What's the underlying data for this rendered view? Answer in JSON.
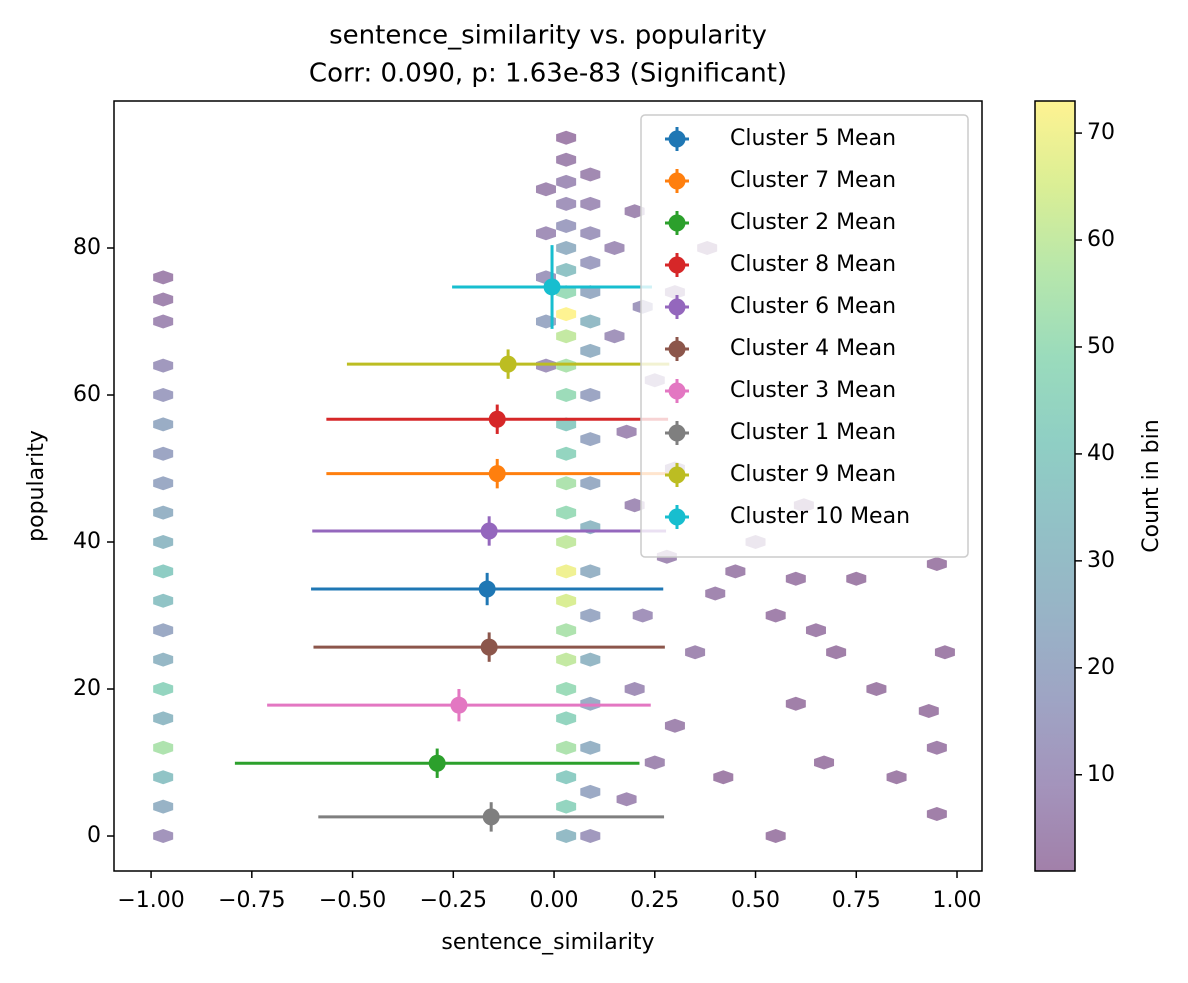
{
  "chart_data": {
    "type": "hexbin",
    "title": "sentence_similarity vs. popularity",
    "subtitle": "Corr: 0.090, p: 1.63e-83 (Significant)",
    "x_label": "sentence_similarity",
    "y_label": "popularity",
    "colorbar_label": "Count in bin",
    "xlim": [
      -1.092,
      1.062
    ],
    "ylim": [
      -4.76,
      100
    ],
    "clim": [
      1,
      73
    ],
    "xticks": [
      {
        "value": -1,
        "label": "−1.00"
      },
      {
        "value": -0.75,
        "label": "−0.75"
      },
      {
        "value": -0.5,
        "label": "−0.50"
      },
      {
        "value": -0.25,
        "label": "−0.25"
      },
      {
        "value": 0,
        "label": "0.00"
      },
      {
        "value": 0.25,
        "label": "0.25"
      },
      {
        "value": 0.5,
        "label": "0.50"
      },
      {
        "value": 0.75,
        "label": "0.75"
      },
      {
        "value": 1,
        "label": "1.00"
      }
    ],
    "yticks": [
      0,
      20,
      40,
      60,
      80
    ],
    "cticks": [
      10,
      20,
      30,
      40,
      50,
      60,
      70
    ],
    "colormap": [
      "#440154",
      "#482878",
      "#3e4989",
      "#31688e",
      "#26828e",
      "#1f9e89",
      "#35b779",
      "#6ece58",
      "#b5de2b",
      "#fde725"
    ],
    "legend": "upper right",
    "hexbin": [
      [
        -0.97,
        0,
        10
      ],
      [
        -0.97,
        4,
        25
      ],
      [
        -0.97,
        8,
        35
      ],
      [
        -0.97,
        12,
        55
      ],
      [
        -0.97,
        16,
        30
      ],
      [
        -0.97,
        20,
        45
      ],
      [
        -0.97,
        24,
        28
      ],
      [
        -0.97,
        28,
        20
      ],
      [
        -0.97,
        32,
        35
      ],
      [
        -0.97,
        36,
        40
      ],
      [
        -0.97,
        40,
        30
      ],
      [
        -0.97,
        44,
        25
      ],
      [
        -0.97,
        48,
        20
      ],
      [
        -0.97,
        52,
        18
      ],
      [
        -0.97,
        56,
        22
      ],
      [
        -0.97,
        60,
        15
      ],
      [
        -0.97,
        64,
        12
      ],
      [
        -0.97,
        70,
        6
      ],
      [
        -0.97,
        73,
        4
      ],
      [
        -0.97,
        76,
        3
      ],
      [
        0.03,
        0,
        30
      ],
      [
        0.03,
        4,
        45
      ],
      [
        0.03,
        8,
        40
      ],
      [
        0.03,
        12,
        55
      ],
      [
        0.03,
        16,
        45
      ],
      [
        0.03,
        20,
        50
      ],
      [
        0.03,
        24,
        60
      ],
      [
        0.03,
        28,
        55
      ],
      [
        0.03,
        32,
        65
      ],
      [
        0.03,
        36,
        70
      ],
      [
        0.03,
        40,
        60
      ],
      [
        0.03,
        44,
        50
      ],
      [
        0.03,
        48,
        55
      ],
      [
        0.03,
        52,
        45
      ],
      [
        0.03,
        56,
        40
      ],
      [
        0.03,
        60,
        50
      ],
      [
        0.03,
        64,
        55
      ],
      [
        0.03,
        68,
        60
      ],
      [
        0.03,
        71,
        73
      ],
      [
        0.03,
        74,
        50
      ],
      [
        0.03,
        77,
        35
      ],
      [
        0.03,
        80,
        25
      ],
      [
        0.03,
        83,
        15
      ],
      [
        0.03,
        86,
        10
      ],
      [
        0.03,
        89,
        8
      ],
      [
        0.03,
        92,
        4
      ],
      [
        0.03,
        95,
        2
      ],
      [
        0.09,
        0,
        12
      ],
      [
        0.09,
        6,
        20
      ],
      [
        0.09,
        12,
        25
      ],
      [
        0.09,
        18,
        22
      ],
      [
        0.09,
        24,
        28
      ],
      [
        0.09,
        30,
        20
      ],
      [
        0.09,
        36,
        25
      ],
      [
        0.09,
        42,
        30
      ],
      [
        0.09,
        48,
        22
      ],
      [
        0.09,
        54,
        20
      ],
      [
        0.09,
        60,
        18
      ],
      [
        0.09,
        66,
        25
      ],
      [
        0.09,
        70,
        30
      ],
      [
        0.09,
        74,
        22
      ],
      [
        0.09,
        78,
        15
      ],
      [
        0.09,
        82,
        12
      ],
      [
        0.09,
        86,
        8
      ],
      [
        0.09,
        90,
        5
      ],
      [
        -0.02,
        64,
        10
      ],
      [
        -0.02,
        70,
        20
      ],
      [
        -0.02,
        76,
        12
      ],
      [
        -0.02,
        82,
        8
      ],
      [
        -0.02,
        88,
        5
      ],
      [
        0.18,
        5,
        6
      ],
      [
        0.25,
        10,
        5
      ],
      [
        0.3,
        15,
        4
      ],
      [
        0.2,
        20,
        8
      ],
      [
        0.35,
        25,
        5
      ],
      [
        0.22,
        30,
        9
      ],
      [
        0.4,
        33,
        4
      ],
      [
        0.28,
        38,
        6
      ],
      [
        0.45,
        36,
        3
      ],
      [
        0.2,
        45,
        7
      ],
      [
        0.3,
        50,
        5
      ],
      [
        0.18,
        55,
        6
      ],
      [
        0.25,
        62,
        8
      ],
      [
        0.15,
        68,
        10
      ],
      [
        0.22,
        72,
        12
      ],
      [
        0.3,
        74,
        6
      ],
      [
        0.15,
        80,
        8
      ],
      [
        0.2,
        85,
        5
      ],
      [
        0.38,
        80,
        2
      ],
      [
        0.5,
        40,
        3
      ],
      [
        0.55,
        30,
        2
      ],
      [
        0.6,
        35,
        2
      ],
      [
        0.65,
        28,
        2
      ],
      [
        0.7,
        25,
        1
      ],
      [
        0.75,
        35,
        1
      ],
      [
        0.62,
        45,
        2
      ],
      [
        0.95,
        37,
        1
      ],
      [
        0.97,
        25,
        1
      ],
      [
        0.95,
        3,
        1
      ],
      [
        0.95,
        12,
        2
      ],
      [
        0.93,
        17,
        1
      ],
      [
        0.67,
        10,
        1
      ],
      [
        0.42,
        8,
        1
      ],
      [
        0.6,
        18,
        1
      ],
      [
        0.55,
        0,
        1
      ],
      [
        0.85,
        8,
        1
      ],
      [
        0.8,
        20,
        1
      ]
    ],
    "series": [
      {
        "name": "Cluster 5 Mean",
        "color": "#1f77b4",
        "x": -0.166,
        "y": 33.6,
        "xerr": 0.437,
        "yerr": 2.2
      },
      {
        "name": "Cluster 7 Mean",
        "color": "#ff7f0e",
        "x": -0.141,
        "y": 49.3,
        "xerr": 0.424,
        "yerr": 2.0
      },
      {
        "name": "Cluster 2 Mean",
        "color": "#2ca02c",
        "x": -0.29,
        "y": 9.9,
        "xerr": 0.502,
        "yerr": 2.0
      },
      {
        "name": "Cluster 8 Mean",
        "color": "#d62728",
        "x": -0.141,
        "y": 56.7,
        "xerr": 0.424,
        "yerr": 2.0
      },
      {
        "name": "Cluster 6 Mean",
        "color": "#9467bd",
        "x": -0.161,
        "y": 41.5,
        "xerr": 0.439,
        "yerr": 2.0
      },
      {
        "name": "Cluster 4 Mean",
        "color": "#8c564b",
        "x": -0.161,
        "y": 25.7,
        "xerr": 0.436,
        "yerr": 2.0
      },
      {
        "name": "Cluster 3 Mean",
        "color": "#e377c2",
        "x": -0.236,
        "y": 17.8,
        "xerr": 0.476,
        "yerr": 2.2
      },
      {
        "name": "Cluster 1 Mean",
        "color": "#7f7f7f",
        "x": -0.156,
        "y": 2.6,
        "xerr": 0.429,
        "yerr": 2.0
      },
      {
        "name": "Cluster 9 Mean",
        "color": "#bcbd22",
        "x": -0.114,
        "y": 64.2,
        "xerr": 0.4,
        "yerr": 2.0
      },
      {
        "name": "Cluster 10 Mean",
        "color": "#17becf",
        "x": -0.005,
        "y": 74.7,
        "xerr": 0.248,
        "yerr": 5.7
      }
    ]
  }
}
